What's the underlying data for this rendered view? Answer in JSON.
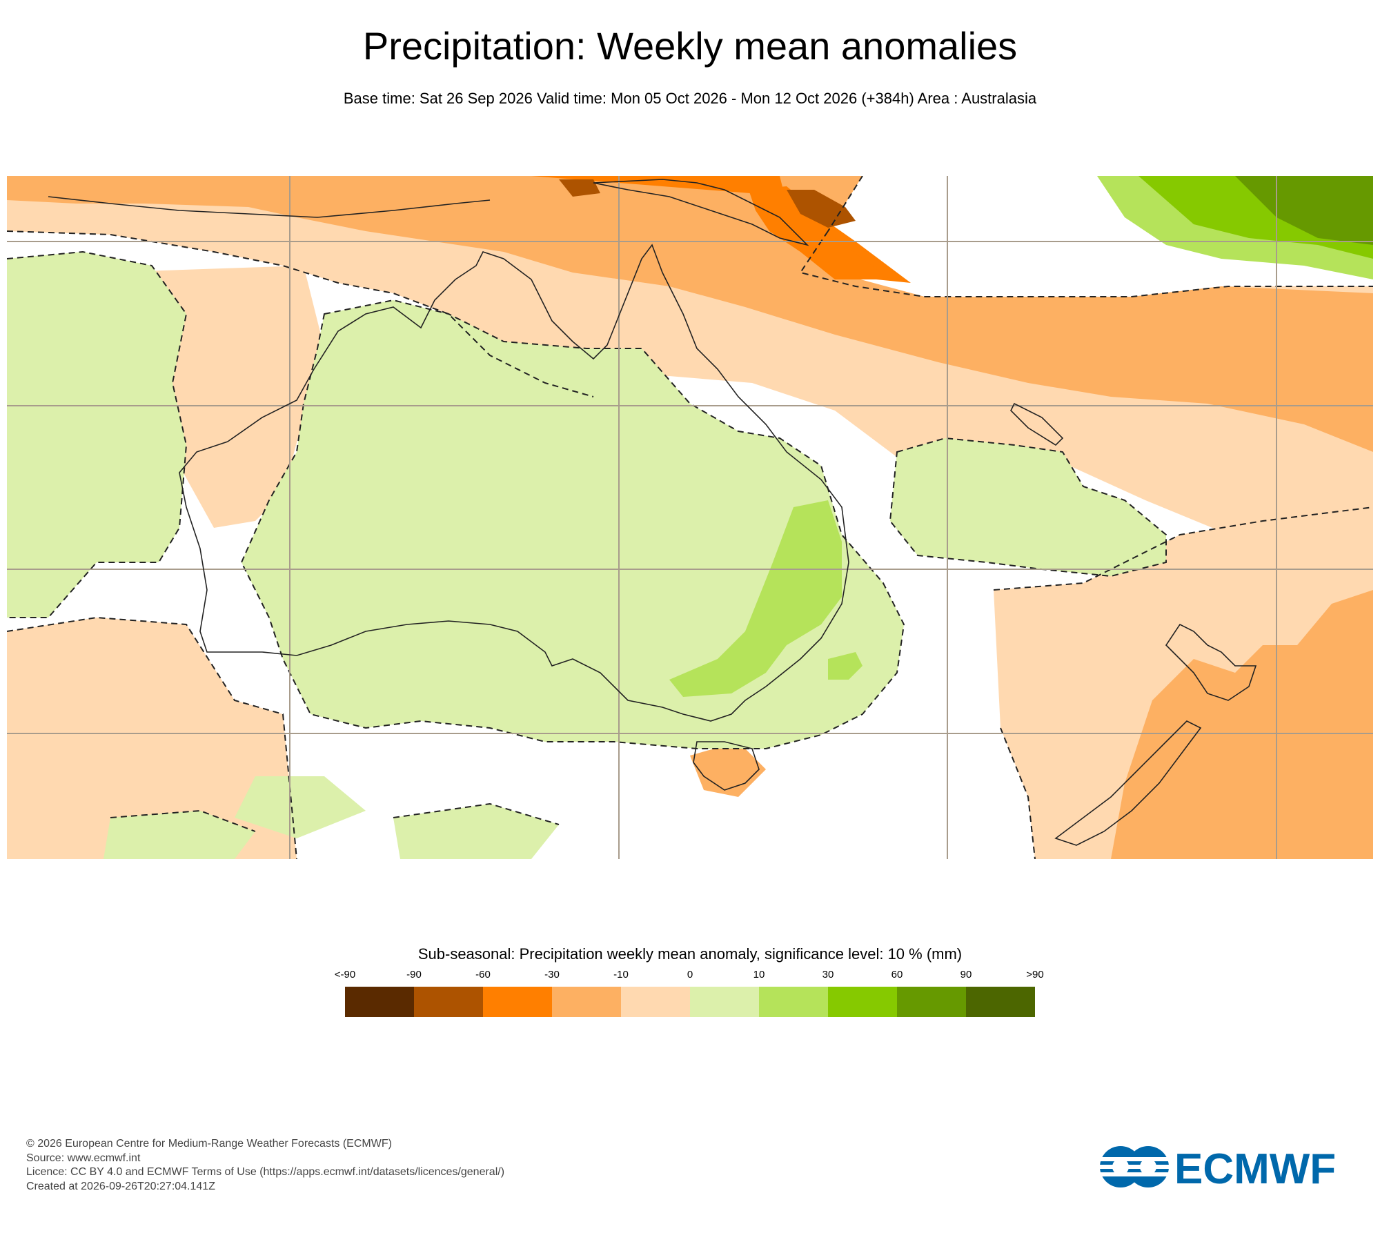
{
  "header": {
    "title": "Precipitation: Weekly mean anomalies",
    "subtitle": "Base time: Sat 26 Sep 2026 Valid time: Mon 05 Oct 2026 - Mon 12 Oct 2026 (+384h) Area : Australasia"
  },
  "legend": {
    "title": "Sub-seasonal: Precipitation weekly mean anomaly, significance level: 10 % (mm)",
    "labels": [
      "<-90",
      "-90",
      "-60",
      "-30",
      "-10",
      "0",
      "10",
      "30",
      "60",
      "90",
      ">90"
    ],
    "colors": [
      "#5a2a00",
      "#ad5300",
      "#ff7f00",
      "#fdb062",
      "#ffd9b0",
      "#dcf0ab",
      "#b5e35a",
      "#86c900",
      "#669900",
      "#4c6600"
    ]
  },
  "map": {
    "region": "Australasia",
    "palette": {
      "positive_light": "#dcf0ab",
      "positive_mid": "#b5e35a",
      "positive_strong": "#86c900",
      "positive_dark": "#669900",
      "negative_light": "#ffd9b0",
      "negative_mid": "#fdb062",
      "negative_strong": "#ff7f00",
      "negative_dark": "#ad5300",
      "coastline": "#222222",
      "grid": "#a89c8c"
    }
  },
  "footer": {
    "line1": "© 2026 European Centre for Medium-Range Weather Forecasts (ECMWF)",
    "line2": "Source: www.ecmwf.int",
    "line3": "Licence: CC BY 4.0 and ECMWF Terms of Use (https://apps.ecmwf.int/datasets/licences/general/)",
    "line4": "Created at 2026-09-26T20:27:04.141Z"
  },
  "logo": {
    "text": "ECMWF",
    "color": "#0068ab"
  }
}
